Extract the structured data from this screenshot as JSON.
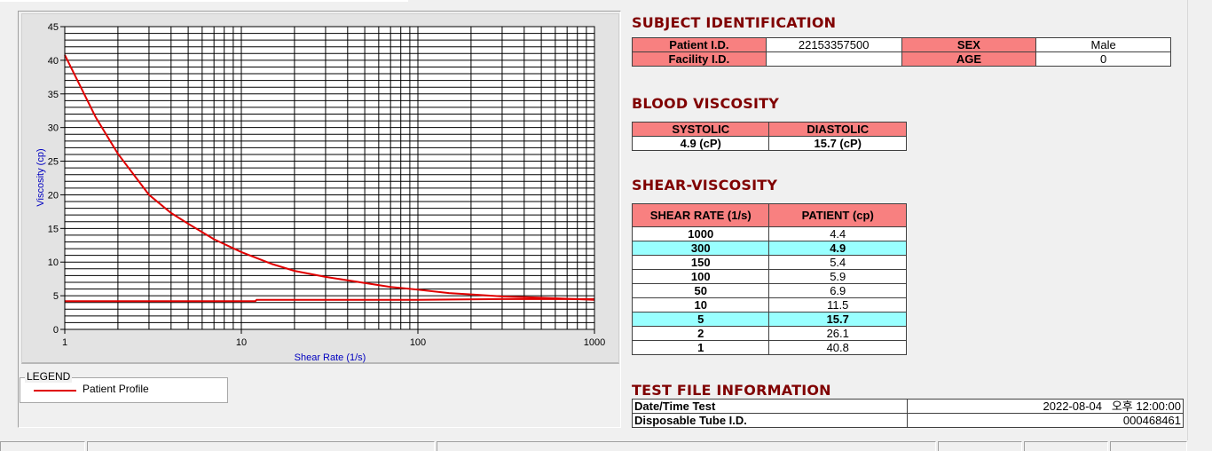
{
  "subject": {
    "title": "SUBJECT IDENTIFICATION",
    "patient_id_label": "Patient I.D.",
    "patient_id": "22153357500",
    "sex_label": "SEX",
    "sex": "Male",
    "facility_label": "Facility I.D.",
    "facility_id": "",
    "age_label": "AGE",
    "age": "0"
  },
  "blood": {
    "title": "BLOOD VISCOSITY",
    "systolic_label": "SYSTOLIC",
    "diastolic_label": "DIASTOLIC",
    "systolic": "4.9 (cP)",
    "diastolic": "15.7 (cP)"
  },
  "shear": {
    "title": "SHEAR-VISCOSITY",
    "col_rate": "SHEAR RATE (1/s)",
    "col_patient": "PATIENT (cp)",
    "rows": [
      {
        "rate": "1000",
        "value": "4.4",
        "highlight": false
      },
      {
        "rate": "300",
        "value": "4.9",
        "highlight": true
      },
      {
        "rate": "150",
        "value": "5.4",
        "highlight": false
      },
      {
        "rate": "100",
        "value": "5.9",
        "highlight": false
      },
      {
        "rate": "50",
        "value": "6.9",
        "highlight": false
      },
      {
        "rate": "10",
        "value": "11.5",
        "highlight": false
      },
      {
        "rate": "5",
        "value": "15.7",
        "highlight": true
      },
      {
        "rate": "2",
        "value": "26.1",
        "highlight": false
      },
      {
        "rate": "1",
        "value": "40.8",
        "highlight": false
      }
    ]
  },
  "testfile": {
    "title": "TEST FILE INFORMATION",
    "date_label": "Date/Time Test",
    "date_value": "2022-08-04   오후 12:00:00",
    "tube_label": "Disposable Tube I.D.",
    "tube_value": "000468461"
  },
  "legend": {
    "title": "LEGEND",
    "entry": "Patient Profile",
    "line_color": "#e00000"
  },
  "chart_data": {
    "type": "line",
    "xlabel": "Shear Rate (1/s)",
    "ylabel": "Viscosity (cp)",
    "x_scale": "log",
    "xlim": [
      1,
      1000
    ],
    "ylim": [
      0,
      45
    ],
    "x_ticks": [
      "1",
      "10",
      "100",
      "1000"
    ],
    "y_ticks": [
      "0",
      "5",
      "10",
      "15",
      "20",
      "25",
      "30",
      "35",
      "40",
      "45"
    ],
    "grid": true,
    "series": [
      {
        "color": "#e00000",
        "x": [
          1,
          1.5,
          2,
          3,
          4,
          5,
          7,
          10,
          15,
          20,
          30,
          50,
          70,
          100,
          150,
          200,
          300,
          500,
          700,
          1000
        ],
        "y": [
          40.8,
          31.5,
          26.1,
          20.0,
          17.3,
          15.7,
          13.4,
          11.5,
          9.7,
          8.7,
          7.8,
          6.9,
          6.3,
          5.9,
          5.4,
          5.2,
          4.9,
          4.7,
          4.55,
          4.4
        ]
      },
      {
        "color": "#e00000",
        "x": [
          1,
          12,
          12.2,
          100,
          300,
          1000
        ],
        "y": [
          4.2,
          4.2,
          4.4,
          4.4,
          4.5,
          4.5
        ]
      }
    ]
  }
}
